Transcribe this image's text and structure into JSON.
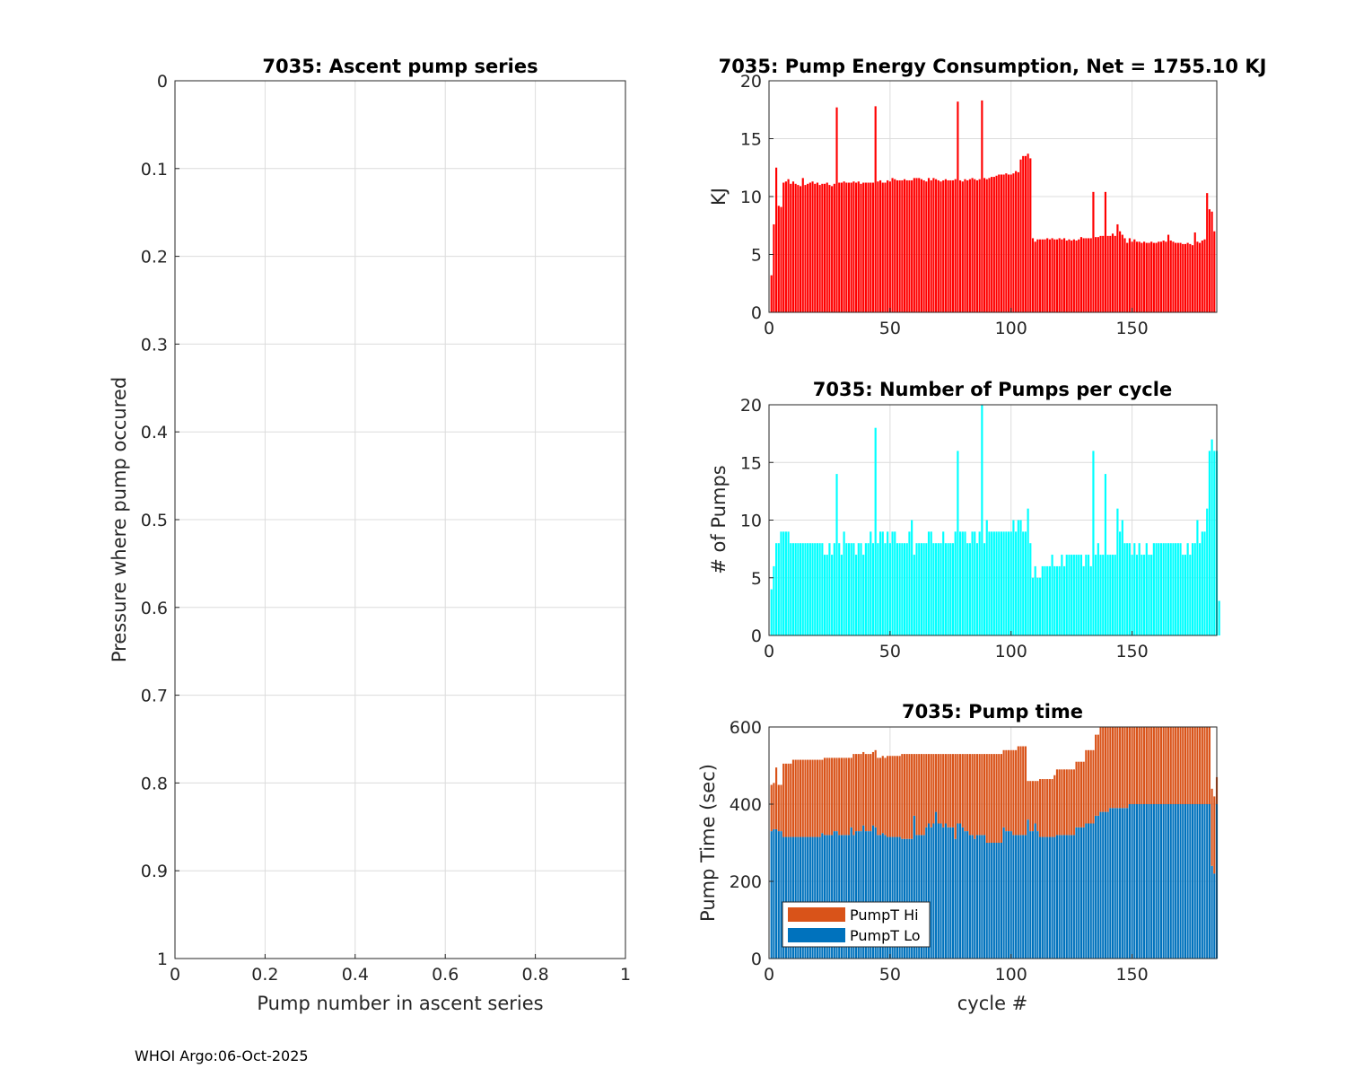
{
  "footer": "WHOI Argo:06-Oct-2025",
  "colors": {
    "energy": "#ff0000",
    "pumps": "#00ffff",
    "hi": "#d95319",
    "lo": "#0072bd",
    "grid": "#dcdcdc",
    "axis": "#262626"
  },
  "chart_data": [
    {
      "id": "ascent",
      "type": "scatter",
      "title": "7035: Ascent pump series",
      "xlabel": "Pump number in ascent series",
      "ylabel": "Pressure where pump occured",
      "xlim": [
        0,
        1
      ],
      "ylim": [
        0,
        1
      ],
      "y_reversed": true,
      "xticks": [
        "0",
        "0.2",
        "0.4",
        "0.6",
        "0.8",
        "1"
      ],
      "yticks": [
        "0",
        "0.1",
        "0.2",
        "0.3",
        "0.4",
        "0.5",
        "0.6",
        "0.7",
        "0.8",
        "0.9",
        "1"
      ],
      "grid": true,
      "x": [],
      "y": []
    },
    {
      "id": "energy",
      "type": "bar",
      "title": "7035: Pump Energy Consumption,  Net = 1755.10 KJ",
      "xlabel": "",
      "ylabel": "KJ",
      "xlim": [
        0,
        185
      ],
      "ylim": [
        0,
        20
      ],
      "xticks": [
        "0",
        "50",
        "100",
        "150"
      ],
      "yticks": [
        "0",
        "5",
        "10",
        "15",
        "20"
      ],
      "grid": true,
      "x_start": 1,
      "values": [
        3.2,
        7.6,
        12.5,
        9.2,
        9.1,
        11.2,
        11.3,
        11.5,
        11.1,
        11.3,
        11.1,
        11.0,
        10.9,
        11.6,
        11.0,
        11.1,
        11.2,
        11.3,
        11.1,
        11.2,
        11.0,
        11.1,
        11.1,
        11.2,
        11.0,
        10.9,
        11.1,
        17.7,
        11.2,
        11.2,
        11.3,
        11.2,
        11.2,
        11.2,
        11.3,
        11.2,
        11.3,
        11.1,
        11.2,
        11.2,
        11.2,
        11.2,
        11.2,
        17.8,
        11.3,
        11.4,
        11.2,
        11.2,
        11.4,
        11.3,
        11.6,
        11.5,
        11.4,
        11.4,
        11.4,
        11.5,
        11.4,
        11.4,
        11.4,
        11.6,
        11.6,
        11.6,
        11.5,
        11.4,
        11.3,
        11.6,
        11.4,
        11.6,
        11.5,
        11.4,
        11.3,
        11.4,
        11.5,
        11.4,
        11.4,
        11.4,
        11.5,
        18.2,
        11.4,
        11.3,
        11.5,
        11.4,
        11.5,
        11.6,
        11.5,
        11.4,
        11.5,
        18.3,
        11.6,
        11.5,
        11.6,
        11.7,
        11.7,
        11.8,
        11.9,
        11.9,
        11.9,
        12.0,
        11.9,
        11.9,
        12.0,
        12.2,
        12.1,
        13.2,
        13.5,
        13.5,
        13.7,
        13.3,
        6.4,
        6.1,
        6.3,
        6.3,
        6.3,
        6.3,
        6.4,
        6.3,
        6.4,
        6.3,
        6.3,
        6.4,
        6.3,
        6.4,
        6.2,
        6.3,
        6.2,
        6.3,
        6.2,
        6.3,
        6.5,
        6.4,
        6.4,
        6.4,
        6.4,
        10.4,
        6.5,
        6.5,
        6.6,
        6.6,
        10.4,
        6.6,
        6.6,
        6.8,
        6.6,
        7.6,
        7.0,
        6.7,
        6.4,
        6.0,
        6.4,
        6.1,
        6.3,
        6.1,
        6.1,
        6.0,
        6.1,
        6.0,
        6.0,
        6.1,
        6.0,
        6.0,
        6.1,
        6.1,
        6.2,
        6.1,
        6.7,
        6.2,
        6.1,
        6.0,
        6.0,
        6.0,
        5.9,
        5.9,
        6.0,
        5.9,
        5.8,
        6.9,
        6.1,
        6.0,
        6.2,
        6.3,
        10.3,
        8.9,
        8.7,
        7.0
      ]
    },
    {
      "id": "pumps",
      "type": "bar",
      "title": "7035: Number of Pumps per cycle",
      "xlabel": "",
      "ylabel": "# of Pumps",
      "xlim": [
        0,
        185
      ],
      "ylim": [
        0,
        20
      ],
      "xticks": [
        "0",
        "50",
        "100",
        "150"
      ],
      "yticks": [
        "0",
        "5",
        "10",
        "15",
        "20"
      ],
      "grid": true,
      "x_start": 1,
      "values": [
        4,
        6,
        8,
        8,
        9,
        9,
        9,
        9,
        8,
        8,
        8,
        8,
        8,
        8,
        8,
        8,
        8,
        8,
        8,
        8,
        8,
        8,
        7,
        7,
        8,
        7,
        8,
        14,
        8,
        7,
        9,
        8,
        8,
        8,
        8,
        7,
        8,
        8,
        7,
        8,
        8,
        9,
        8,
        18,
        8,
        9,
        9,
        8,
        9,
        8,
        9,
        9,
        8,
        8,
        8,
        8,
        8,
        9,
        10,
        7,
        8,
        8,
        8,
        8,
        8,
        9,
        9,
        8,
        8,
        8,
        8,
        9,
        8,
        8,
        8,
        8,
        9,
        16,
        9,
        9,
        9,
        8,
        8,
        9,
        9,
        8,
        9,
        20,
        8,
        10,
        9,
        9,
        9,
        9,
        9,
        9,
        9,
        9,
        9,
        9,
        10,
        9,
        10,
        10,
        9,
        9,
        11,
        8,
        5,
        6,
        5,
        5,
        6,
        6,
        6,
        6,
        7,
        6,
        6,
        6,
        7,
        6,
        7,
        7,
        7,
        7,
        7,
        7,
        7,
        6,
        7,
        7,
        6,
        16,
        7,
        8,
        7,
        7,
        14,
        7,
        7,
        7,
        7,
        11,
        9,
        10,
        8,
        8,
        8,
        7,
        8,
        7,
        8,
        7,
        7,
        8,
        7,
        7,
        8,
        8,
        8,
        8,
        8,
        8,
        8,
        8,
        8,
        8,
        8,
        8,
        7,
        7,
        8,
        7,
        8,
        8,
        10,
        8,
        9,
        9,
        11,
        16,
        17,
        16,
        16,
        3
      ]
    },
    {
      "id": "pumptime",
      "type": "bar",
      "stacked": true,
      "title": "7035: Pump time",
      "xlabel": "cycle #",
      "ylabel": "Pump Time (sec)",
      "xlim": [
        0,
        185
      ],
      "ylim": [
        0,
        600
      ],
      "xticks": [
        "0",
        "50",
        "100",
        "150"
      ],
      "yticks": [
        "0",
        "200",
        "400",
        "600"
      ],
      "grid": true,
      "legend": "bottom-left",
      "x_start": 1,
      "series": [
        {
          "name": "PumpT Hi",
          "color": "#d95319",
          "values": [
            120,
            120,
            160,
            120,
            120,
            190,
            190,
            190,
            190,
            200,
            200,
            200,
            200,
            200,
            200,
            200,
            200,
            200,
            200,
            200,
            200,
            190,
            200,
            200,
            200,
            200,
            190,
            190,
            200,
            200,
            200,
            200,
            200,
            180,
            210,
            200,
            200,
            200,
            190,
            200,
            200,
            200,
            190,
            200,
            200,
            200,
            200,
            200,
            210,
            210,
            210,
            210,
            210,
            210,
            220,
            220,
            220,
            220,
            220,
            160,
            210,
            210,
            210,
            210,
            190,
            180,
            190,
            180,
            150,
            180,
            180,
            190,
            180,
            190,
            190,
            190,
            220,
            180,
            180,
            190,
            200,
            200,
            210,
            210,
            220,
            210,
            210,
            210,
            210,
            230,
            230,
            230,
            230,
            230,
            230,
            230,
            200,
            210,
            210,
            210,
            220,
            220,
            230,
            230,
            230,
            230,
            100,
            130,
            130,
            110,
            130,
            150,
            150,
            150,
            150,
            150,
            150,
            160,
            170,
            170,
            170,
            170,
            170,
            170,
            170,
            170,
            170,
            170,
            170,
            170,
            190,
            190,
            190,
            190,
            210,
            210,
            220,
            220,
            220,
            230,
            230,
            230,
            230,
            240,
            240,
            240,
            230,
            210,
            200,
            200,
            200,
            200,
            200,
            200,
            200,
            200,
            200,
            200,
            200,
            200,
            200,
            200,
            200,
            200,
            200,
            200,
            200,
            200,
            200,
            200,
            200,
            200,
            200,
            200,
            200,
            200,
            200,
            200,
            200,
            200,
            200,
            200,
            200,
            200,
            70
          ]
        },
        {
          "name": "PumpT Lo",
          "color": "#0072bd",
          "values": [
            330,
            335,
            335,
            330,
            330,
            315,
            315,
            315,
            315,
            315,
            315,
            315,
            315,
            315,
            315,
            315,
            315,
            315,
            315,
            315,
            315,
            325,
            320,
            320,
            320,
            320,
            330,
            330,
            320,
            320,
            320,
            320,
            320,
            340,
            320,
            330,
            330,
            330,
            345,
            330,
            330,
            330,
            345,
            340,
            320,
            320,
            325,
            320,
            315,
            315,
            315,
            315,
            315,
            315,
            310,
            310,
            310,
            310,
            310,
            370,
            320,
            320,
            320,
            320,
            340,
            350,
            340,
            350,
            380,
            350,
            350,
            340,
            350,
            340,
            340,
            340,
            310,
            350,
            350,
            340,
            330,
            330,
            320,
            320,
            310,
            320,
            320,
            320,
            320,
            300,
            300,
            300,
            300,
            300,
            300,
            300,
            340,
            330,
            330,
            330,
            320,
            320,
            320,
            320,
            320,
            320,
            360,
            330,
            330,
            350,
            330,
            315,
            315,
            315,
            315,
            315,
            315,
            315,
            320,
            320,
            320,
            320,
            320,
            320,
            320,
            320,
            340,
            340,
            340,
            340,
            350,
            350,
            350,
            350,
            370,
            370,
            380,
            380,
            380,
            380,
            390,
            390,
            390,
            390,
            390,
            390,
            390,
            390,
            400,
            400,
            400,
            400,
            400,
            400,
            400,
            400,
            400,
            400,
            400,
            400,
            400,
            400,
            400,
            400,
            400,
            400,
            400,
            400,
            400,
            400,
            400,
            400,
            400,
            400,
            400,
            400,
            400,
            400,
            400,
            400,
            400,
            400,
            240,
            220,
            400
          ]
        }
      ]
    }
  ]
}
